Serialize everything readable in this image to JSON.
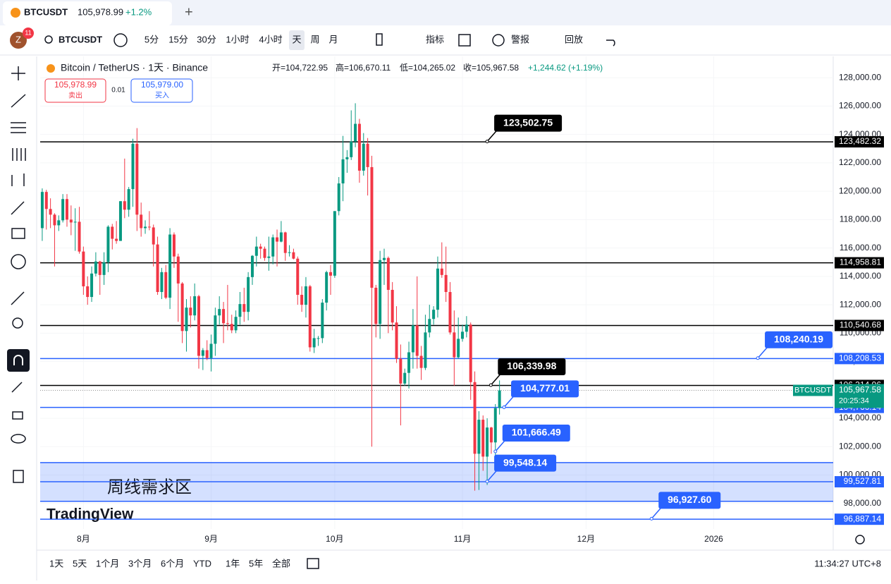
{
  "tab": {
    "symbol": "BTCUSDT",
    "price": "105,978.99",
    "change": "+1.2%"
  },
  "toolbar": {
    "avatar": "Z",
    "badge": "11",
    "symbol": "BTCUSDT",
    "intervals": [
      "5分",
      "15分",
      "30分",
      "1小时",
      "4小时",
      "天",
      "周",
      "月"
    ],
    "indicators": "指标",
    "alerts": "警报",
    "replay": "回放"
  },
  "legend": {
    "title": "Bitcoin / TetherUS · 1天 · Binance",
    "open": "开=104,722.95",
    "high": "高=106,670.11",
    "low": "低=104,265.02",
    "close": "收=105,967.58",
    "change": "+1,244.62 (+1.19%)"
  },
  "trade": {
    "sell_price": "105,978.99",
    "sell": "卖出",
    "spread": "0.01",
    "buy_price": "105,979.00",
    "buy": "买入"
  },
  "bottom": {
    "ranges": [
      "1天",
      "5天",
      "1个月",
      "3个月",
      "6个月",
      "YTD",
      "1年",
      "5年",
      "全部"
    ],
    "clock": "11:34:27 UTC+8"
  },
  "chart_data": {
    "type": "candlestick",
    "watermark": "TradingView",
    "up_color": "#089981",
    "down_color": "#f23645",
    "grid": true,
    "candles": [
      [
        117400,
        120200,
        116500,
        119950
      ],
      [
        119950,
        120100,
        117300,
        118750
      ],
      [
        118750,
        119500,
        117400,
        118350
      ],
      [
        118350,
        118450,
        114700,
        117600
      ],
      [
        117600,
        118300,
        117200,
        117950
      ],
      [
        117950,
        119800,
        117800,
        119450
      ],
      [
        119450,
        119800,
        117500,
        118000
      ],
      [
        118000,
        119000,
        116900,
        117800
      ],
      [
        117800,
        118800,
        115800,
        117850
      ],
      [
        117850,
        118900,
        115600,
        115750
      ],
      [
        115750,
        116100,
        112700,
        113300
      ],
      [
        113300,
        114000,
        112000,
        112550
      ],
      [
        112550,
        114700,
        112200,
        114200
      ],
      [
        114200,
        115700,
        114000,
        115050
      ],
      [
        115050,
        115100,
        112700,
        114100
      ],
      [
        114100,
        115700,
        113400,
        115000
      ],
      [
        115000,
        117600,
        114300,
        117500
      ],
      [
        117500,
        117700,
        115900,
        116650
      ],
      [
        116650,
        117900,
        116300,
        116500
      ],
      [
        116500,
        119300,
        116500,
        119300
      ],
      [
        119300,
        122300,
        118100,
        118700
      ],
      [
        118700,
        120300,
        118200,
        120150
      ],
      [
        120150,
        123700,
        118900,
        123350
      ],
      [
        123350,
        124450,
        117200,
        118350
      ],
      [
        118350,
        119200,
        116800,
        117400
      ],
      [
        117400,
        117950,
        117000,
        117500
      ],
      [
        117500,
        118600,
        117250,
        117450
      ],
      [
        117450,
        117650,
        114700,
        116250
      ],
      [
        116250,
        116800,
        112700,
        112900
      ],
      [
        112900,
        114600,
        112400,
        114300
      ],
      [
        114300,
        114800,
        112400,
        112500
      ],
      [
        112500,
        117400,
        111700,
        116950
      ],
      [
        116950,
        117100,
        114600,
        115400
      ],
      [
        115400,
        115600,
        110800,
        113500
      ],
      [
        113500,
        113600,
        109300,
        110150
      ],
      [
        110150,
        112400,
        108700,
        111800
      ],
      [
        111800,
        112600,
        110400,
        111250
      ],
      [
        111250,
        113500,
        110900,
        112600
      ],
      [
        112600,
        112700,
        107500,
        108400
      ],
      [
        108400,
        108950,
        107400,
        108800
      ],
      [
        108800,
        109500,
        108100,
        108250
      ],
      [
        108250,
        109900,
        107300,
        109250
      ],
      [
        109250,
        111800,
        108400,
        111250
      ],
      [
        111250,
        112600,
        110600,
        111700
      ],
      [
        111700,
        112200,
        109300,
        110700
      ],
      [
        110700,
        113400,
        110200,
        110650
      ],
      [
        110650,
        111300,
        110000,
        110200
      ],
      [
        110200,
        111600,
        110000,
        111150
      ],
      [
        111150,
        112900,
        110600,
        112050
      ],
      [
        112050,
        113200,
        110800,
        111500
      ],
      [
        111500,
        114300,
        110900,
        113950
      ],
      [
        113950,
        115500,
        113400,
        115450
      ],
      [
        115450,
        116800,
        114700,
        116100
      ],
      [
        116100,
        116300,
        115250,
        115950
      ],
      [
        115950,
        116100,
        115100,
        115300
      ],
      [
        115300,
        116800,
        114400,
        115400
      ],
      [
        115400,
        116950,
        114850,
        116750
      ],
      [
        116750,
        117300,
        114700,
        116450
      ],
      [
        116450,
        117900,
        116400,
        117100
      ],
      [
        117100,
        117150,
        115100,
        115650
      ],
      [
        115650,
        116200,
        115400,
        115700
      ],
      [
        115700,
        115950,
        115200,
        115250
      ],
      [
        115250,
        115400,
        112000,
        112700
      ],
      [
        112700,
        113300,
        111500,
        112000
      ],
      [
        112000,
        113950,
        111100,
        113300
      ],
      [
        113300,
        113400,
        108700,
        109000
      ],
      [
        109000,
        110300,
        108600,
        109650
      ],
      [
        109650,
        109800,
        109100,
        109650
      ],
      [
        109650,
        112400,
        109300,
        112150
      ],
      [
        112150,
        114400,
        111600,
        114300
      ],
      [
        114300,
        114800,
        112700,
        114050
      ],
      [
        114050,
        118600,
        113900,
        118600
      ],
      [
        118600,
        121000,
        118300,
        120550
      ],
      [
        120550,
        123900,
        119300,
        122250
      ],
      [
        122250,
        122900,
        121300,
        122400
      ],
      [
        122400,
        125700,
        122200,
        123500
      ],
      [
        123500,
        126200,
        123100,
        124750
      ],
      [
        124750,
        125100,
        120600,
        121450
      ],
      [
        121450,
        124100,
        121100,
        123350
      ],
      [
        123350,
        123750,
        119700,
        121700
      ],
      [
        121700,
        122500,
        102000,
        113200
      ],
      [
        113200,
        113400,
        109700,
        110650
      ],
      [
        110650,
        115800,
        109600,
        115150
      ],
      [
        115150,
        115950,
        113400,
        115300
      ],
      [
        115300,
        115400,
        110000,
        113050
      ],
      [
        113050,
        113600,
        110200,
        110750
      ],
      [
        110750,
        111900,
        107900,
        108200
      ],
      [
        108200,
        109200,
        103500,
        106450
      ],
      [
        106450,
        107500,
        106300,
        107200
      ],
      [
        107200,
        109400,
        106100,
        108650
      ],
      [
        108650,
        111700,
        107500,
        110550
      ],
      [
        110550,
        114000,
        107500,
        108400
      ],
      [
        108400,
        109100,
        106700,
        107550
      ],
      [
        107550,
        111300,
        107400,
        110050
      ],
      [
        110050,
        112000,
        109700,
        111000
      ],
      [
        111000,
        111900,
        110600,
        111650
      ],
      [
        111650,
        115400,
        111100,
        114550
      ],
      [
        114550,
        116400,
        113900,
        114100
      ],
      [
        114100,
        116100,
        112200,
        112900
      ],
      [
        112900,
        113600,
        109900,
        110050
      ],
      [
        110050,
        111600,
        106300,
        108300
      ],
      [
        108300,
        111100,
        108200,
        109600
      ],
      [
        109600,
        110600,
        109400,
        110100
      ],
      [
        110100,
        111200,
        109700,
        110600
      ],
      [
        110600,
        110750,
        105300,
        106550
      ],
      [
        106550,
        107300,
        98900,
        101500
      ],
      [
        101500,
        104500,
        98950,
        103900
      ],
      [
        103900,
        104200,
        100300,
        101300
      ],
      [
        101300,
        104000,
        99300,
        103350
      ],
      [
        103350,
        103400,
        101500,
        102300
      ],
      [
        102300,
        105000,
        101300,
        104720
      ],
      [
        104722.95,
        106670.11,
        104265.02,
        105967.58
      ]
    ],
    "xlim": [
      -0.5,
      192
    ],
    "xticks": [
      {
        "value": 10,
        "label": "8月"
      },
      {
        "value": 41,
        "label": "9月"
      },
      {
        "value": 71,
        "label": "10月"
      },
      {
        "value": 102,
        "label": "11月"
      },
      {
        "value": 132,
        "label": "12月"
      },
      {
        "value": 163,
        "label": "2026"
      }
    ],
    "ylim": [
      96200,
      129500
    ],
    "yticks": [
      {
        "value": 98000,
        "label": "98,000.00"
      },
      {
        "value": 100000,
        "label": "100,000.00"
      },
      {
        "value": 102000,
        "label": "102,000.00"
      },
      {
        "value": 104000,
        "label": "104,000.00"
      },
      {
        "value": 106000,
        "label": "106,000.00"
      },
      {
        "value": 108000,
        "label": "108,000.00"
      },
      {
        "value": 110000,
        "label": "110,000.00"
      },
      {
        "value": 112000,
        "label": "112,000.00"
      },
      {
        "value": 114000,
        "label": "114,000.00"
      },
      {
        "value": 116000,
        "label": "116,000.00"
      },
      {
        "value": 118000,
        "label": "118,000.00"
      },
      {
        "value": 120000,
        "label": "120,000.00"
      },
      {
        "value": 122000,
        "label": "122,000.00"
      },
      {
        "value": 124000,
        "label": "124,000.00"
      },
      {
        "value": 126000,
        "label": "126,000.00"
      },
      {
        "value": 128000,
        "label": "128,000.00"
      }
    ],
    "zone": {
      "from": 98150,
      "to": 100880,
      "label": "周线需求区",
      "color": "#2962ff"
    },
    "levels": [
      {
        "value": 123482.32,
        "label": "123,482.32",
        "color": "#000000"
      },
      {
        "value": 114958.81,
        "label": "114,958.81",
        "color": "#000000"
      },
      {
        "value": 110540.68,
        "label": "110,540.68",
        "color": "#000000"
      },
      {
        "value": 108208.53,
        "label": "108,208.53",
        "color": "#2962ff"
      },
      {
        "value": 106314.96,
        "label": "106,314.96",
        "color": "#000000"
      },
      {
        "value": 104766.14,
        "label": "104,766.14",
        "color": "#2962ff"
      },
      {
        "value": 99527.81,
        "label": "99,527.81",
        "color": "#2962ff"
      },
      {
        "value": 96887.14,
        "label": "96,887.14",
        "color": "#2962ff"
      }
    ],
    "callouts": [
      {
        "x": 108,
        "value": 123502.75,
        "label": "123,502.75",
        "color": "#000000"
      },
      {
        "x": 108.9,
        "value": 106339.98,
        "label": "106,339.98",
        "color": "#000000"
      },
      {
        "x": 112.1,
        "value": 104777.01,
        "label": "104,777.01",
        "color": "#2962ff"
      },
      {
        "x": 110,
        "value": 101666.49,
        "label": "101,666.49",
        "color": "#2962ff"
      },
      {
        "x": 108,
        "value": 99548.14,
        "label": "99,548.14",
        "color": "#2962ff"
      },
      {
        "x": 173.7,
        "value": 108240.19,
        "label": "108,240.19",
        "color": "#2962ff"
      },
      {
        "x": 147.9,
        "value": 96927.6,
        "label": "96,927.60",
        "color": "#2962ff"
      }
    ],
    "last_price": {
      "value": 105967.58,
      "label": "105,967.58",
      "symbol": "BTCUSDT",
      "countdown": "20:25:34",
      "color": "#089981"
    }
  }
}
